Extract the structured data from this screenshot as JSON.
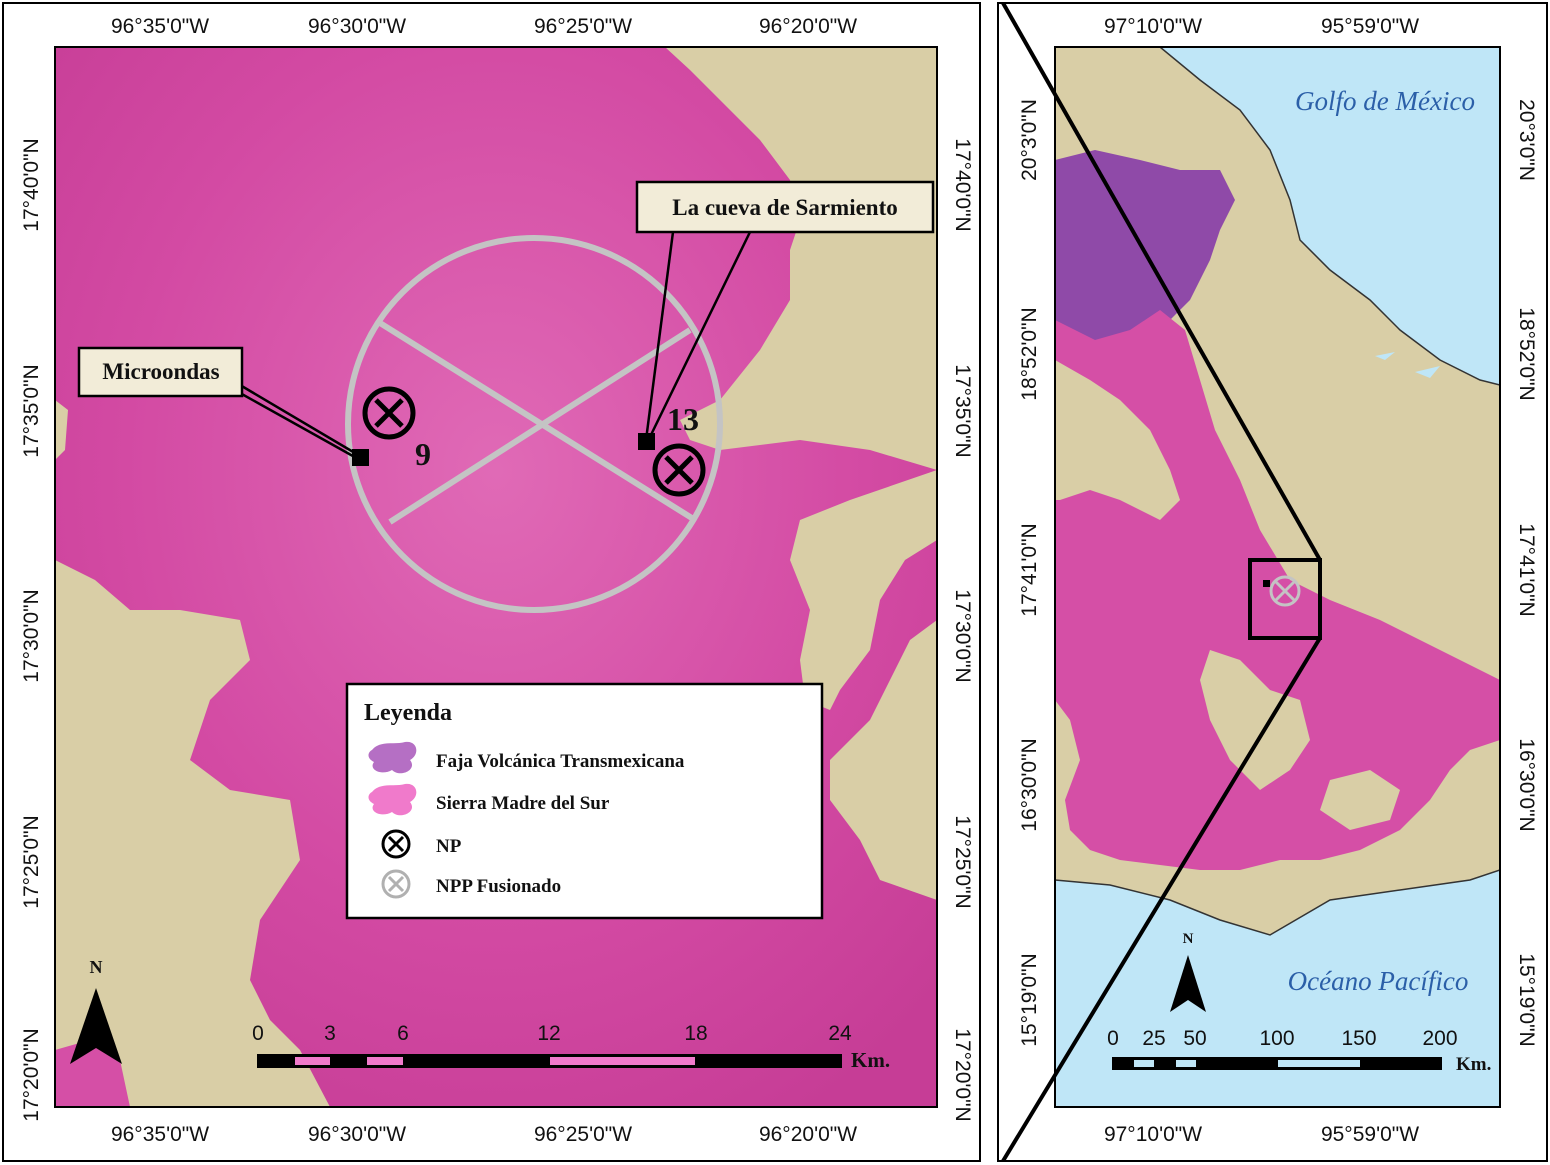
{
  "left_map": {
    "top_ticks": [
      "96°35'0\"W",
      "96°30'0\"W",
      "96°25'0\"W",
      "96°20'0\"W"
    ],
    "bottom_ticks": [
      "96°35'0\"W",
      "96°30'0\"W",
      "96°25'0\"W",
      "96°20'0\"W"
    ],
    "left_ticks": [
      "17°40'0\"N",
      "17°35'0\"N",
      "17°30'0\"N",
      "17°25'0\"N",
      "17°20'0\"N"
    ],
    "right_ticks": [
      "17°40'0\"N",
      "17°35'0\"N",
      "17°30'0\"N",
      "17°25'0\"N",
      "17°20'0\"N"
    ],
    "callouts": {
      "microondas": "Microondas",
      "sarmiento": "La cueva de Sarmiento"
    },
    "points": [
      {
        "label": "9"
      },
      {
        "label": "13"
      }
    ],
    "legend": {
      "title": "Leyenda",
      "items": [
        {
          "label": "Faja Volcánica Transmexicana",
          "symbol": "purple-patch",
          "color": "#b56fc4"
        },
        {
          "label": "Sierra Madre del Sur",
          "symbol": "pink-patch",
          "color": "#f07acb"
        },
        {
          "label": "NP",
          "symbol": "black-circle-x"
        },
        {
          "label": "NPP Fusionado",
          "symbol": "gray-circle-x"
        }
      ]
    },
    "scale": {
      "labels": [
        "0",
        "3",
        "6",
        "12",
        "18",
        "24"
      ],
      "unit": "Km."
    },
    "north": "N"
  },
  "right_map": {
    "top_ticks": [
      "97°10'0\"W",
      "95°59'0\"W"
    ],
    "bottom_ticks": [
      "97°10'0\"W",
      "95°59'0\"W"
    ],
    "left_ticks": [
      "20°3'0\"N",
      "18°52'0\"N",
      "17°41'0\"N",
      "16°30'0\"N",
      "15°19'0\"N"
    ],
    "right_ticks": [
      "20°3'0\"N",
      "18°52'0\"N",
      "17°41'0\"N",
      "16°30'0\"N",
      "15°19'0\"N"
    ],
    "seas": {
      "north": "Golfo de México",
      "south": "Océano Pacífico"
    },
    "scale": {
      "labels": [
        "0",
        "25",
        "50",
        "100",
        "150",
        "200"
      ],
      "unit": "Km."
    },
    "north": "N"
  },
  "colors": {
    "sierra_madre": "#d54fa6",
    "faja_volcanica": "#8f4aa8",
    "terrain": "#d9cea6",
    "sea": "#bfe6f7",
    "npp_gray": "#c4c4c4"
  }
}
